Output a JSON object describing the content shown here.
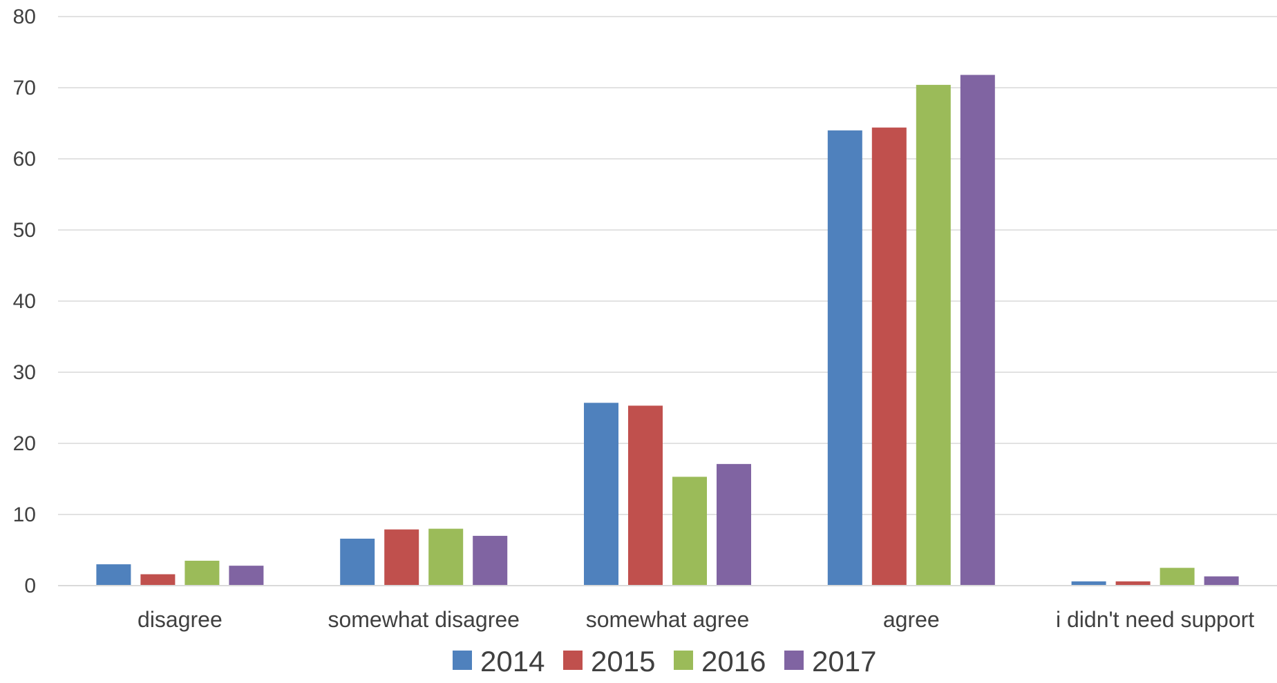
{
  "chart_data": {
    "type": "bar",
    "title": "",
    "xlabel": "",
    "ylabel": "",
    "ylim": [
      0,
      80
    ],
    "yticks": [
      0,
      10,
      20,
      30,
      40,
      50,
      60,
      70,
      80
    ],
    "grid": true,
    "legend_position": "bottom",
    "categories": [
      "disagree",
      "somewhat disagree",
      "somewhat agree",
      "agree",
      "i didn't need support"
    ],
    "series": [
      {
        "name": "2014",
        "color": "#4F81BD",
        "values": [
          3.0,
          6.6,
          25.7,
          64.0,
          0.6
        ]
      },
      {
        "name": "2015",
        "color": "#C0504D",
        "values": [
          1.6,
          7.9,
          25.3,
          64.4,
          0.6
        ]
      },
      {
        "name": "2016",
        "color": "#9BBB59",
        "values": [
          3.5,
          8.0,
          15.3,
          70.4,
          2.5
        ]
      },
      {
        "name": "2017",
        "color": "#8064A2",
        "values": [
          2.8,
          7.0,
          17.1,
          71.8,
          1.3
        ]
      }
    ]
  }
}
